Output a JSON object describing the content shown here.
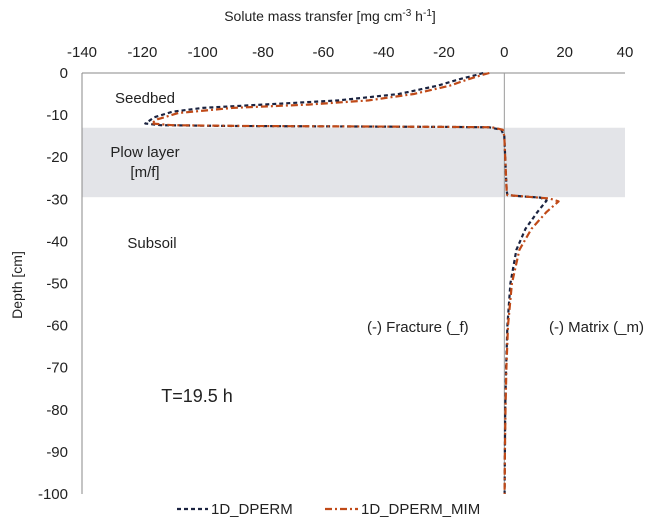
{
  "chart_data": {
    "type": "line",
    "title": "",
    "xlabel": {
      "main": "Solute mass transfer [mg cm",
      "sup1": "-3",
      "mid": " h",
      "sup2": "-1",
      "end": "]"
    },
    "ylabel": "Depth [cm]",
    "xlim": [
      -140,
      40
    ],
    "ylim": [
      -100,
      0
    ],
    "x_ticks": [
      "-140",
      "-120",
      "-100",
      "-80",
      "-60",
      "-40",
      "-20",
      "0",
      "20",
      "40"
    ],
    "y_ticks": [
      "0",
      "-10",
      "-20",
      "-30",
      "-40",
      "-50",
      "-60",
      "-70",
      "-80",
      "-90",
      "-100"
    ],
    "x_axis_position": "top",
    "grid": false,
    "legend_position": "bottom",
    "shaded_band": {
      "depth_from": -13,
      "depth_to": -29.5,
      "color": "#e3e4e8"
    },
    "annotations": {
      "seedbed": "Seedbed",
      "plow_layer_line1": "Plow layer",
      "plow_layer_line2": "[m/f]",
      "subsoil": "Subsoil",
      "fracture": "(-) Fracture (_f)",
      "matrix": "(-) Matrix (_m)",
      "time": "T=19.5 h"
    },
    "series": [
      {
        "name": "1D_DPERM",
        "color": "#1b2340",
        "style": "dashed",
        "points": [
          [
            -7,
            0
          ],
          [
            -10,
            -0.6
          ],
          [
            -15,
            -1.5
          ],
          [
            -22,
            -3
          ],
          [
            -35,
            -5
          ],
          [
            -55,
            -6.5
          ],
          [
            -80,
            -7.5
          ],
          [
            -100,
            -8.3
          ],
          [
            -110,
            -9.2
          ],
          [
            -116,
            -10.5
          ],
          [
            -119,
            -12
          ],
          [
            -114,
            -12.4
          ],
          [
            -90,
            -12.6
          ],
          [
            -50,
            -12.7
          ],
          [
            -20,
            -12.8
          ],
          [
            -5,
            -12.9
          ],
          [
            -1,
            -13.5
          ],
          [
            0,
            -15
          ],
          [
            0.3,
            -20
          ],
          [
            0.6,
            -25
          ],
          [
            0.8,
            -28
          ],
          [
            1,
            -29
          ],
          [
            6,
            -29.3
          ],
          [
            12,
            -29.6
          ],
          [
            14,
            -30.3
          ],
          [
            11,
            -33
          ],
          [
            7,
            -37
          ],
          [
            4,
            -42
          ],
          [
            2,
            -50
          ],
          [
            1,
            -60
          ],
          [
            0.6,
            -70
          ],
          [
            0.3,
            -80
          ],
          [
            0.2,
            -90
          ],
          [
            0.1,
            -100
          ]
        ]
      },
      {
        "name": "1D_DPERM_MIM",
        "color": "#c04a18",
        "style": "dash-dot",
        "points": [
          [
            -5,
            0
          ],
          [
            -8,
            -0.6
          ],
          [
            -12,
            -1.5
          ],
          [
            -18,
            -3
          ],
          [
            -30,
            -5
          ],
          [
            -45,
            -6.5
          ],
          [
            -65,
            -7.5
          ],
          [
            -90,
            -8.3
          ],
          [
            -108,
            -9.5
          ],
          [
            -115,
            -11
          ],
          [
            -117,
            -12
          ],
          [
            -110,
            -12.4
          ],
          [
            -85,
            -12.6
          ],
          [
            -45,
            -12.7
          ],
          [
            -18,
            -12.8
          ],
          [
            -4,
            -12.9
          ],
          [
            -0.5,
            -13.5
          ],
          [
            0,
            -15
          ],
          [
            0.3,
            -20
          ],
          [
            0.6,
            -25
          ],
          [
            0.8,
            -28
          ],
          [
            1,
            -29
          ],
          [
            8,
            -29.4
          ],
          [
            15,
            -29.8
          ],
          [
            18,
            -30.5
          ],
          [
            14,
            -33
          ],
          [
            9,
            -37
          ],
          [
            5,
            -42
          ],
          [
            2.5,
            -50
          ],
          [
            1.2,
            -60
          ],
          [
            0.7,
            -70
          ],
          [
            0.4,
            -80
          ],
          [
            0.2,
            -90
          ],
          [
            0.1,
            -100
          ]
        ]
      }
    ]
  }
}
